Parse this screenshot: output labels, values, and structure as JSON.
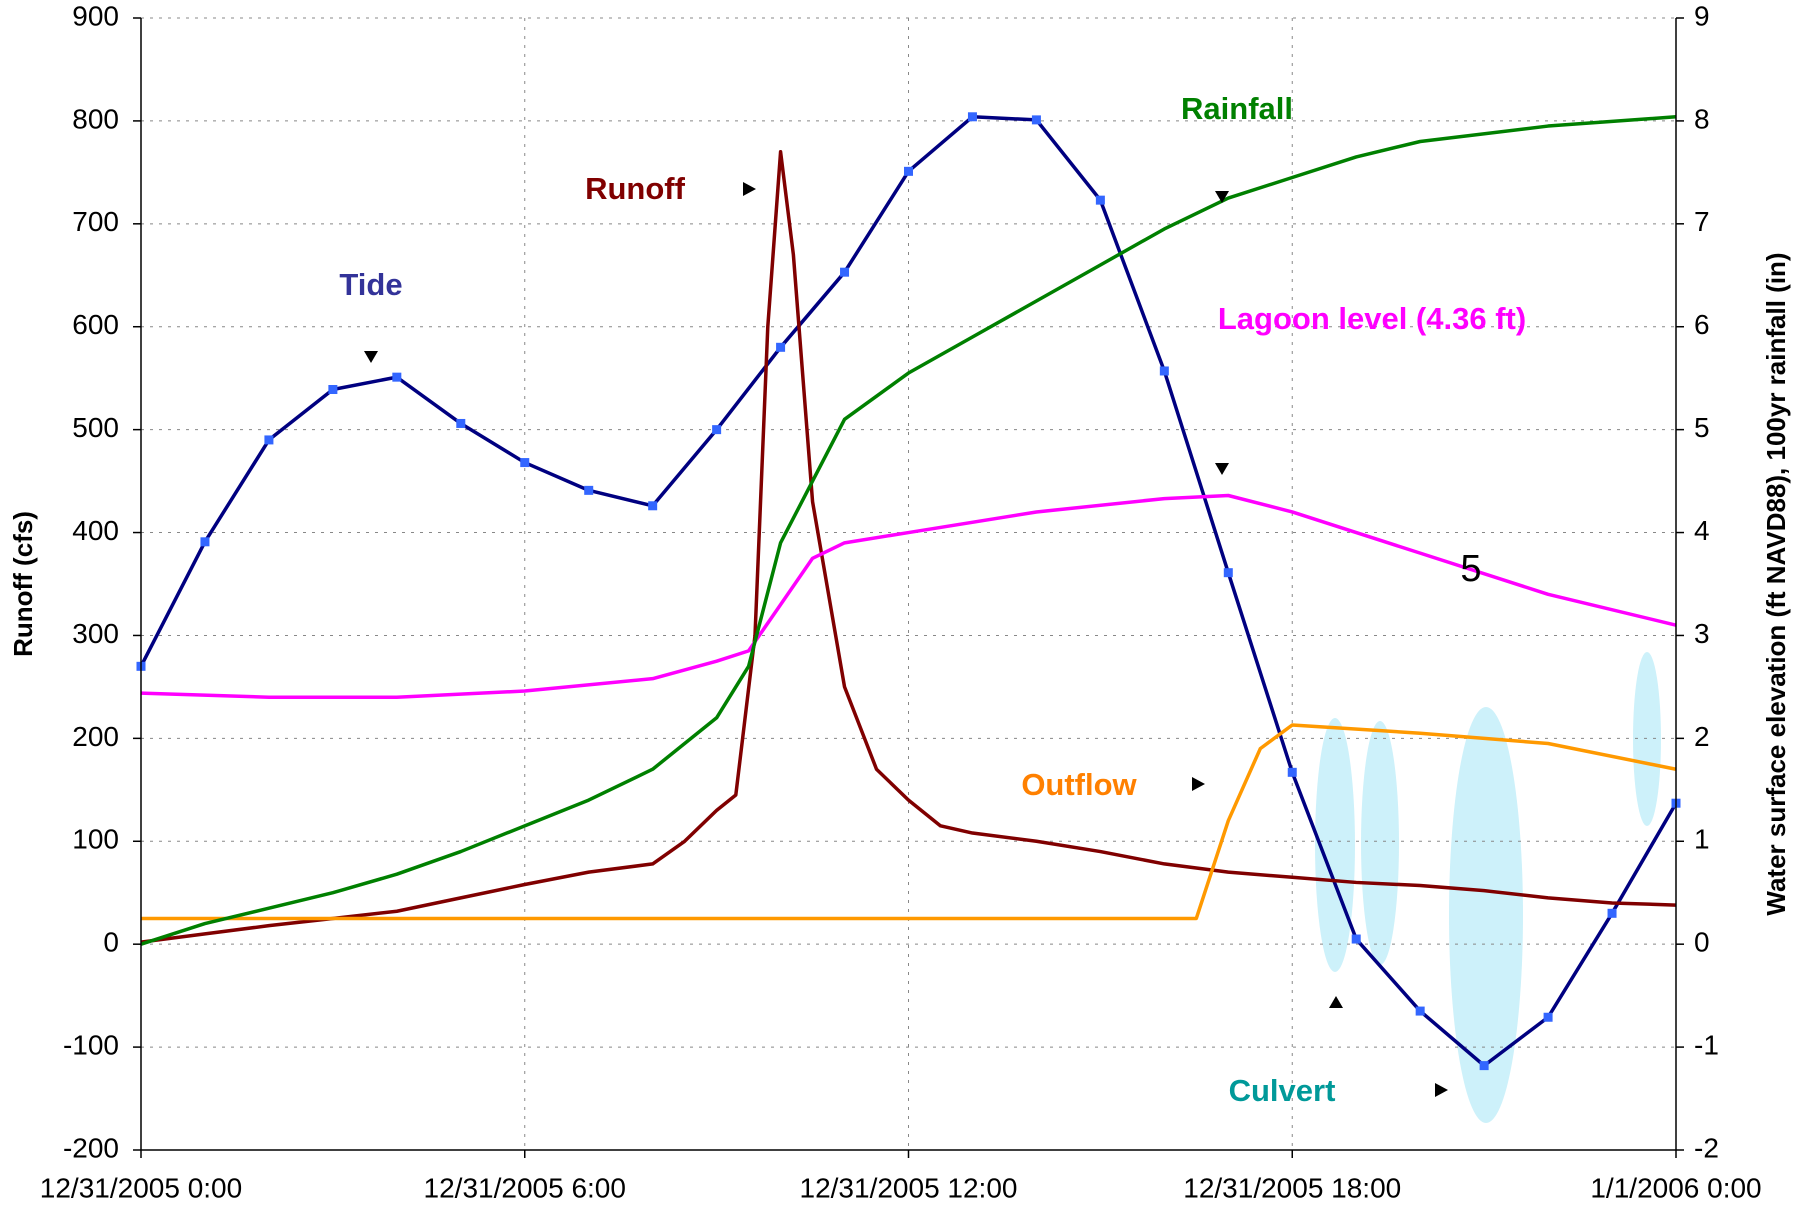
{
  "chart_data": {
    "type": "line",
    "y_label": "Runoff (cfs)",
    "y2_label": "Water surface elevation (ft NAVD88), 100yr rainfall (in)",
    "xlim": [
      0,
      24
    ],
    "xticks": [
      {
        "value": 0,
        "label": "12/31/2005 0:00"
      },
      {
        "value": 6,
        "label": "12/31/2005 6:00"
      },
      {
        "value": 12,
        "label": "12/31/2005 12:00"
      },
      {
        "value": 18,
        "label": "12/31/2005 18:00"
      },
      {
        "value": 24,
        "label": "1/1/2006 0:00"
      }
    ],
    "ylim": [
      -200,
      900
    ],
    "yticks": [
      -200,
      -100,
      0,
      100,
      200,
      300,
      400,
      500,
      600,
      700,
      800,
      900
    ],
    "y2lim": [
      -2,
      9
    ],
    "y2ticks": [
      -2,
      -1,
      0,
      1,
      2,
      3,
      4,
      5,
      6,
      7,
      8,
      9
    ],
    "grid": true,
    "series": [
      {
        "name": "Tide",
        "color": "#000080",
        "marker_color": "#3366ff",
        "axis": "y2",
        "markers": true,
        "x": [
          0,
          1,
          2,
          3,
          4,
          5,
          6,
          7,
          8,
          9,
          10,
          11,
          12,
          13,
          14,
          15,
          16,
          17,
          18,
          19,
          20,
          21,
          22,
          23,
          24
        ],
        "values": [
          2.7,
          3.91,
          4.9,
          5.39,
          5.51,
          5.06,
          4.68,
          4.41,
          4.26,
          5.0,
          5.8,
          6.53,
          7.51,
          8.04,
          8.01,
          7.23,
          5.57,
          3.61,
          1.67,
          0.05,
          -0.65,
          -1.18,
          -0.71,
          0.3,
          1.37
        ]
      },
      {
        "name": "Runoff",
        "color": "#800000",
        "x": [
          0,
          1,
          2,
          3,
          4,
          5,
          6,
          7,
          8,
          8.5,
          9,
          9.3,
          9.6,
          9.8,
          10,
          10.2,
          10.5,
          11,
          11.5,
          12,
          12.5,
          13,
          14,
          15,
          16,
          17,
          18,
          19,
          20,
          21,
          22,
          23,
          24
        ],
        "values": [
          2,
          10,
          18,
          25,
          32,
          45,
          58,
          70,
          78,
          100,
          130,
          145,
          300,
          600,
          770,
          670,
          430,
          250,
          170,
          140,
          115,
          108,
          100,
          90,
          78,
          70,
          65,
          60,
          57,
          52,
          45,
          40,
          38
        ]
      },
      {
        "name": "Outflow",
        "color": "#ff9900",
        "x": [
          0,
          16.5,
          17,
          17.5,
          18,
          20,
          22,
          24
        ],
        "values": [
          25,
          25,
          120,
          190,
          213,
          205,
          195,
          170
        ]
      },
      {
        "name": "Lagoon level (4.36 ft)",
        "color": "#ff00ff",
        "axis": "y2",
        "x": [
          0,
          2,
          4,
          6,
          8,
          9,
          9.5,
          10,
          10.5,
          11,
          12,
          14,
          16,
          17,
          18,
          20,
          22,
          24
        ],
        "values": [
          2.44,
          2.4,
          2.4,
          2.46,
          2.58,
          2.75,
          2.85,
          3.3,
          3.75,
          3.9,
          4.0,
          4.2,
          4.33,
          4.36,
          4.2,
          3.8,
          3.4,
          3.1
        ]
      },
      {
        "name": "Rainfall",
        "color": "#008000",
        "axis": "y2",
        "x": [
          0,
          1,
          2,
          3,
          4,
          5,
          6,
          7,
          8,
          9,
          9.5,
          10,
          10.5,
          11,
          12,
          13,
          14,
          15,
          16,
          17,
          18,
          19,
          20,
          22,
          24
        ],
        "values": [
          0,
          0.2,
          0.35,
          0.5,
          0.68,
          0.9,
          1.15,
          1.4,
          1.7,
          2.2,
          2.7,
          3.9,
          4.5,
          5.1,
          5.55,
          5.9,
          6.25,
          6.6,
          6.95,
          7.25,
          7.45,
          7.65,
          7.8,
          7.95,
          8.04
        ]
      }
    ],
    "annotations": [
      "Tide",
      "Runoff",
      "Rainfall",
      "Lagoon level (4.36 ft)",
      "Outflow",
      "Culvert",
      "5"
    ]
  }
}
